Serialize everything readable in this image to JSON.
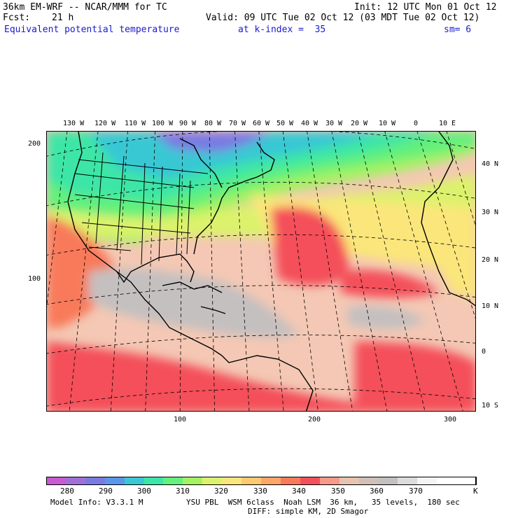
{
  "header": {
    "model": "36km EM-WRF -- NCAR/MMM for TC",
    "init": "Init: 12 UTC Mon 01 Oct 12",
    "fcst_label": "Fcst:",
    "fcst_value": "21 h",
    "valid": "Valid: 09 UTC Tue 02 Oct 12 (03 MDT Tue 02 Oct 12)",
    "field": "Equivalent potential temperature",
    "level": "at k-index =  35",
    "smooth": "sm= 6"
  },
  "map": {
    "lon_labels": [
      "130 W",
      "120 W",
      "110 W",
      "100 W",
      "90 W",
      "80 W",
      "70 W",
      "60 W",
      "50 W",
      "40 W",
      "30 W",
      "20 W",
      "10 W",
      "0",
      "10 E"
    ],
    "lat_labels": [
      "40 N",
      "30 N",
      "20 N",
      "10 N",
      "0",
      "10 S"
    ],
    "grid_y_labels": [
      "200",
      "100"
    ],
    "grid_x_labels": [
      "100",
      "200",
      "300"
    ]
  },
  "colorbar": {
    "colors": [
      "#c85ad2",
      "#a070d8",
      "#7a7ae2",
      "#5a96ea",
      "#38c8d4",
      "#3ce6a6",
      "#64f07c",
      "#a4f264",
      "#dcf26c",
      "#fae67a",
      "#fcca72",
      "#fca668",
      "#f87a5a",
      "#f4505a",
      "#f89a8a",
      "#e6c4b0",
      "#d2c0b6",
      "#c4c0c0",
      "#dcdcdc",
      "#f4f4f4",
      "#ffffff",
      "#ffffff"
    ],
    "labels": [
      "280",
      "290",
      "300",
      "310",
      "320",
      "330",
      "340",
      "350",
      "360",
      "370"
    ],
    "unit": "K"
  },
  "footer": {
    "line1_left": "Model Info: V3.3.1 M",
    "line1_right": "YSU PBL  WSM 6class  Noah LSM  36 km,   35 levels,  180 sec",
    "line2": "DIFF: simple KM, 2D Smagor"
  }
}
